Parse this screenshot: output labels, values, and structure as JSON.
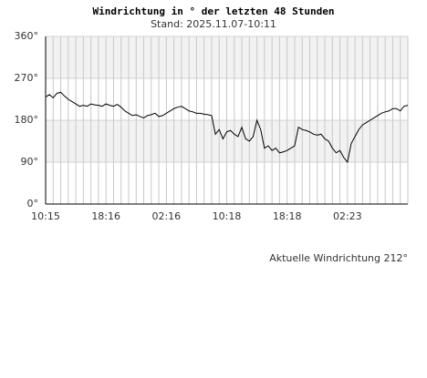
{
  "chart_data": {
    "type": "line",
    "title": "Windrichtung in ° der letzten 48 Stunden",
    "subtitle": "Stand: 2025.11.07-10:11",
    "annotation": "Aktuelle Windrichtung 212°",
    "categories": [
      "10:15",
      null,
      null,
      null,
      null,
      null,
      null,
      null,
      null,
      null,
      null,
      null,
      null,
      null,
      null,
      null,
      "18:16",
      null,
      null,
      null,
      null,
      null,
      null,
      null,
      null,
      null,
      null,
      null,
      null,
      null,
      null,
      null,
      "02:16",
      null,
      null,
      null,
      null,
      null,
      null,
      null,
      null,
      null,
      null,
      null,
      null,
      null,
      null,
      null,
      "10:18",
      null,
      null,
      null,
      null,
      null,
      null,
      null,
      null,
      null,
      null,
      null,
      null,
      null,
      null,
      null,
      "18:18",
      null,
      null,
      null,
      null,
      null,
      null,
      null,
      null,
      null,
      null,
      null,
      null,
      null,
      null,
      null,
      "02:23",
      null,
      null,
      null,
      null,
      null,
      null,
      null,
      null,
      null,
      null,
      null,
      null,
      null,
      null,
      null,
      null
    ],
    "values": [
      230,
      235,
      228,
      238,
      240,
      232,
      225,
      220,
      215,
      210,
      212,
      210,
      215,
      213,
      212,
      210,
      215,
      212,
      210,
      214,
      208,
      200,
      195,
      190,
      192,
      188,
      185,
      190,
      192,
      195,
      188,
      190,
      195,
      200,
      205,
      208,
      210,
      205,
      200,
      198,
      195,
      195,
      193,
      192,
      190,
      150,
      160,
      140,
      155,
      158,
      150,
      145,
      165,
      140,
      135,
      145,
      180,
      160,
      120,
      125,
      115,
      120,
      110,
      112,
      115,
      120,
      125,
      165,
      160,
      158,
      155,
      150,
      148,
      150,
      140,
      135,
      120,
      110,
      115,
      100,
      90,
      130,
      145,
      160,
      170,
      175,
      180,
      185,
      190,
      195,
      198,
      200,
      205,
      205,
      200,
      210,
      212
    ],
    "color": "#000000",
    "ylim": [
      0,
      360
    ],
    "yticks": [
      {
        "value": 0,
        "label": "0°"
      },
      {
        "value": 90,
        "label": "90°"
      },
      {
        "value": 180,
        "label": "180°"
      },
      {
        "value": 270,
        "label": "270°"
      },
      {
        "value": 360,
        "label": "360°"
      }
    ],
    "grid": true
  }
}
